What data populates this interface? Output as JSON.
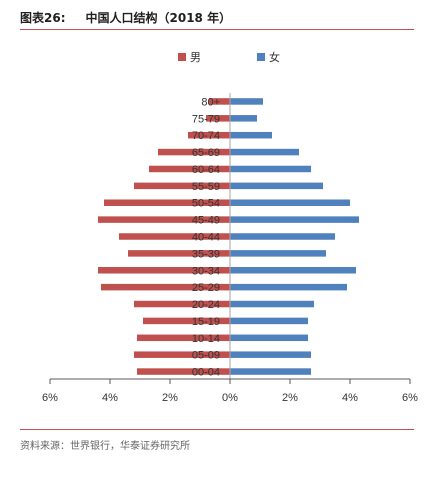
{
  "figure": {
    "number": "图表26:",
    "title": "中国人口结构（2018 年）",
    "source": "资料来源：世界银行，华泰证券研究所"
  },
  "colors": {
    "male": "#c0504d",
    "female": "#4f81bd",
    "rule": "#c0504d"
  },
  "chart_data": {
    "type": "bar",
    "orientation": "horizontal",
    "layout": "population-pyramid",
    "categories": [
      "80+",
      "75-79",
      "70-74",
      "65-69",
      "60-64",
      "55-59",
      "50-54",
      "45-49",
      "40-44",
      "35-39",
      "30-34",
      "25-29",
      "20-24",
      "15-19",
      "10-14",
      "05-09",
      "00-04"
    ],
    "series": [
      {
        "name": "男",
        "values": [
          -0.7,
          -0.8,
          -1.4,
          -2.4,
          -2.7,
          -3.2,
          -4.2,
          -4.4,
          -3.7,
          -3.4,
          -4.4,
          -4.3,
          -3.2,
          -2.9,
          -3.1,
          -3.2,
          -3.1
        ]
      },
      {
        "name": "女",
        "values": [
          1.1,
          0.9,
          1.4,
          2.3,
          2.7,
          3.1,
          4.0,
          4.3,
          3.5,
          3.2,
          4.2,
          3.9,
          2.8,
          2.6,
          2.6,
          2.7,
          2.7
        ]
      }
    ],
    "xticks": [
      "6%",
      "4%",
      "2%",
      "0%",
      "2%",
      "4%",
      "6%"
    ],
    "xlim": [
      -6,
      6
    ],
    "legend_position": "top-center",
    "grid": false
  }
}
